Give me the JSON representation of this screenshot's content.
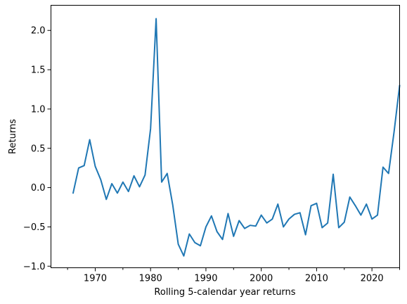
{
  "chart_data": {
    "type": "line",
    "title": "",
    "xlabel": "Rolling 5-calendar year returns",
    "ylabel": "Returns",
    "xlim": [
      1962,
      2025
    ],
    "ylim": [
      -1.02,
      2.32
    ],
    "x_major_ticks": [
      1970,
      1980,
      1990,
      2000,
      2010,
      2020
    ],
    "x_tick_labels": [
      "1970",
      "1980",
      "1990",
      "2000",
      "2010",
      "2020"
    ],
    "x_minor_ticks": [
      1965,
      1975,
      1985,
      1995,
      2005,
      2015,
      2025
    ],
    "y_ticks": [
      -1.0,
      -0.5,
      0.0,
      0.5,
      1.0,
      1.5,
      2.0
    ],
    "y_tick_labels": [
      "−1.0",
      "−0.5",
      "0.0",
      "0.5",
      "1.0",
      "1.5",
      "2.0"
    ],
    "grid": false,
    "legend": "none",
    "series": [
      {
        "color": "#1f77b4",
        "x": [
          1966,
          1967,
          1968,
          1969,
          1970,
          1971,
          1972,
          1973,
          1974,
          1975,
          1976,
          1977,
          1978,
          1979,
          1980,
          1981,
          1982,
          1983,
          1984,
          1985,
          1986,
          1987,
          1988,
          1989,
          1990,
          1991,
          1992,
          1993,
          1994,
          1995,
          1996,
          1997,
          1998,
          1999,
          2000,
          2001,
          2002,
          2003,
          2004,
          2005,
          2006,
          2007,
          2008,
          2009,
          2010,
          2011,
          2012,
          2013,
          2014,
          2015,
          2016,
          2017,
          2018,
          2019,
          2020,
          2021,
          2022,
          2023,
          2024,
          2025
        ],
        "values": [
          -0.07,
          0.25,
          0.28,
          0.61,
          0.27,
          0.1,
          -0.15,
          0.05,
          -0.07,
          0.07,
          -0.05,
          0.15,
          0.01,
          0.16,
          0.75,
          2.15,
          0.07,
          0.18,
          -0.22,
          -0.72,
          -0.87,
          -0.59,
          -0.7,
          -0.74,
          -0.5,
          -0.36,
          -0.56,
          -0.66,
          -0.33,
          -0.62,
          -0.42,
          -0.52,
          -0.48,
          -0.49,
          -0.35,
          -0.45,
          -0.4,
          -0.21,
          -0.5,
          -0.4,
          -0.34,
          -0.32,
          -0.6,
          -0.23,
          -0.2,
          -0.51,
          -0.45,
          0.17,
          -0.51,
          -0.44,
          -0.12,
          -0.23,
          -0.35,
          -0.21,
          -0.4,
          -0.35,
          0.26,
          0.18,
          0.71,
          1.3
        ]
      }
    ]
  }
}
